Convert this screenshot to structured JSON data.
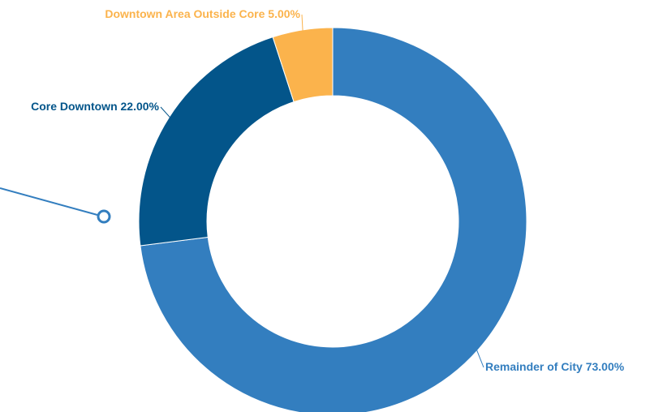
{
  "chart_data": {
    "type": "donut",
    "categories": [
      "Remainder of City",
      "Core Downtown",
      "Downtown Area Outside Core"
    ],
    "values": [
      73,
      22,
      5
    ],
    "value_labels": [
      "73.00%",
      "22.00%",
      "5.00%"
    ],
    "colors": [
      "#337ebf",
      "#03558a",
      "#fbb34c"
    ]
  }
}
